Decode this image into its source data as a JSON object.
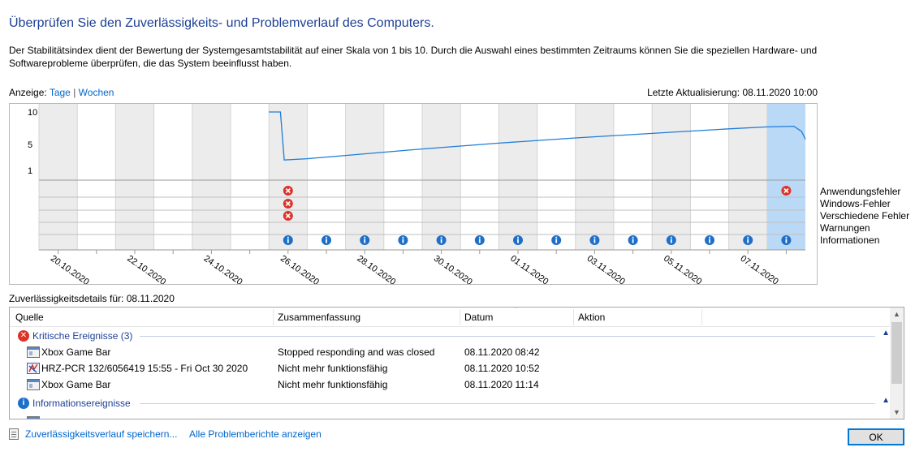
{
  "header": {
    "title": "Überprüfen Sie den Zuverlässigkeits- und Problemverlauf des Computers.",
    "description": "Der Stabilitätsindex dient der Bewertung der Systemgesamtstabilität auf einer Skala von 1 bis 10. Durch die Auswahl eines bestimmten Zeitraums können Sie die speziellen Hardware- und Softwareprobleme überprüfen, die das System beeinflusst haben."
  },
  "view": {
    "label": "Anzeige:",
    "days": "Tage",
    "separator": "|",
    "weeks": "Wochen",
    "last_update": "Letzte Aktualisierung: 08.11.2020 10:00"
  },
  "chart_data": {
    "type": "line",
    "y_ticks": [
      "10",
      "5",
      "1"
    ],
    "ylim": [
      1,
      10
    ],
    "x_labels": [
      "20.10.2020",
      "22.10.2020",
      "24.10.2020",
      "26.10.2020",
      "28.10.2020",
      "30.10.2020",
      "01.11.2020",
      "03.11.2020",
      "05.11.2020",
      "07.11.2020"
    ],
    "day_count": 20,
    "first_day": "20.10.2020",
    "selected_day": "08.11.2020",
    "stability_index": [
      {
        "day": 6.0,
        "value": 10.0
      },
      {
        "day": 6.3,
        "value": 10.0
      },
      {
        "day": 6.4,
        "value": 2.6
      },
      {
        "day": 7.0,
        "value": 2.8
      },
      {
        "day": 8.0,
        "value": 3.3
      },
      {
        "day": 10.0,
        "value": 4.3
      },
      {
        "day": 12.0,
        "value": 5.2
      },
      {
        "day": 14.0,
        "value": 6.0
      },
      {
        "day": 16.0,
        "value": 6.7
      },
      {
        "day": 18.0,
        "value": 7.4
      },
      {
        "day": 19.0,
        "value": 7.7
      },
      {
        "day": 19.7,
        "value": 7.8
      },
      {
        "day": 19.9,
        "value": 7.0
      },
      {
        "day": 20.0,
        "value": 5.8
      }
    ],
    "legend": [
      "Anwendungsfehler",
      "Windows-Fehler",
      "Verschiedene Fehler",
      "Warnungen",
      "Informationen"
    ],
    "events": {
      "application_errors": [
        6,
        19
      ],
      "windows_errors": [
        6
      ],
      "misc_errors": [
        6
      ],
      "warnings": [],
      "information": [
        6,
        7,
        8,
        9,
        10,
        11,
        12,
        13,
        14,
        15,
        16,
        17,
        18,
        19
      ]
    },
    "colors": {
      "line": "#1f7cd6",
      "error": "#d9352b",
      "info": "#1e6fc8",
      "shade": "#ececec",
      "selected": "#b9d9f7"
    }
  },
  "details": {
    "caption": "Zuverlässigkeitsdetails für: 08.11.2020",
    "columns": [
      "Quelle",
      "Zusammenfassung",
      "Datum",
      "Aktion"
    ],
    "groups": [
      {
        "label": "Kritische Ereignisse (3)",
        "icon": "error-icon",
        "rows": [
          {
            "source": "Xbox Game Bar",
            "summary": "Stopped responding and was closed",
            "date": "08.11.2020 08:42",
            "action": ""
          },
          {
            "source": "HRZ-PCR 132/6056419 15:55 - Fri Oct 30 2020",
            "summary": "Nicht mehr funktionsfähig",
            "date": "08.11.2020 10:52",
            "action": ""
          },
          {
            "source": "Xbox Game Bar",
            "summary": "Nicht mehr funktionsfähig",
            "date": "08.11.2020 11:14",
            "action": ""
          }
        ]
      },
      {
        "label": "Informationsereignisse",
        "icon": "info-icon",
        "rows": []
      }
    ]
  },
  "footer": {
    "save_link": "Zuverlässigkeitsverlauf speichern...",
    "all_reports_link": "Alle Problemberichte anzeigen",
    "ok": "OK"
  }
}
